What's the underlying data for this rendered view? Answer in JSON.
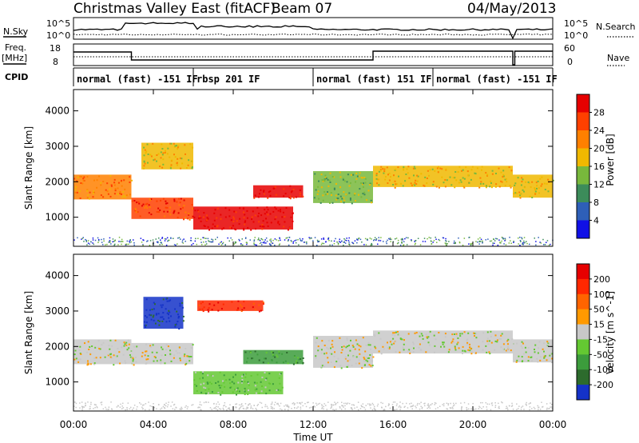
{
  "header": {
    "title": "Christmas Valley East (fitACF)",
    "beam": "Beam 07",
    "date": "04/May/2013"
  },
  "strip_labels": {
    "nsky": "N.Sky",
    "nsky_ticks": [
      "10^5",
      "10^0"
    ],
    "nsearch": "N.Search",
    "nsearch_ticks": [
      "10^5",
      "10^0"
    ],
    "freq": "Freq.",
    "freq_unit": "[MHz]",
    "freq_ticks": [
      "18",
      "8"
    ],
    "nave": "Nave",
    "nave_ticks": [
      "60",
      "0"
    ],
    "cpid": "CPID"
  },
  "cpid_segments": [
    {
      "label": "normal (fast) -151 IF",
      "start_hour": 0
    },
    {
      "label": "rbsp 201 IF",
      "start_hour": 6
    },
    {
      "label": "normal (fast) 151 IF",
      "start_hour": 12
    },
    {
      "label": "normal (fast) -151 IF",
      "start_hour": 18
    }
  ],
  "xaxis": {
    "label": "Time UT",
    "ticks": [
      "00:00",
      "04:00",
      "08:00",
      "12:00",
      "16:00",
      "20:00",
      "00:00"
    ]
  },
  "chart_data": [
    {
      "type": "heatmap",
      "ylabel": "Slant Range [km]",
      "xlabel": "Time UT",
      "xlim": [
        0,
        24
      ],
      "ylim": [
        180,
        4600
      ],
      "yticks": [
        1000,
        2000,
        3000,
        4000
      ],
      "colorbar": {
        "label": "Power [dB]",
        "ticks": [
          "4",
          "8",
          "12",
          "16",
          "20",
          "24",
          "28"
        ],
        "colors": [
          "#1010e6",
          "#2e5fb8",
          "#3c8c5a",
          "#78b83c",
          "#f0b800",
          "#ff8000",
          "#ff4000",
          "#e60000"
        ]
      },
      "bands": [
        {
          "t0": 0.0,
          "t1": 2.9,
          "r0": 1500,
          "r1": 2200,
          "level": 5
        },
        {
          "t0": 2.9,
          "t1": 6.0,
          "r0": 950,
          "r1": 1550,
          "level": 6
        },
        {
          "t0": 3.4,
          "t1": 6.0,
          "r0": 2350,
          "r1": 3100,
          "level": 4
        },
        {
          "t0": 6.0,
          "t1": 11.0,
          "r0": 650,
          "r1": 1300,
          "level": 7
        },
        {
          "t0": 9.0,
          "t1": 11.5,
          "r0": 1550,
          "r1": 1900,
          "level": 7
        },
        {
          "t0": 12.0,
          "t1": 15.0,
          "r0": 1400,
          "r1": 2300,
          "level": 3
        },
        {
          "t0": 15.0,
          "t1": 22.0,
          "r0": 1850,
          "r1": 2450,
          "level": 4
        },
        {
          "t0": 22.0,
          "t1": 24.0,
          "r0": 1550,
          "r1": 2200,
          "level": 4
        }
      ]
    },
    {
      "type": "heatmap",
      "ylabel": "Slant Range [km]",
      "xlabel": "Time UT",
      "xlim": [
        0,
        24
      ],
      "ylim": [
        180,
        4600
      ],
      "yticks": [
        1000,
        2000,
        3000,
        4000
      ],
      "colorbar": {
        "label": "Velocity [m s^-1]",
        "ticks": [
          "200",
          "100",
          "50",
          "15",
          "-15",
          "-50",
          "-100",
          "-200"
        ],
        "colors": [
          "#1432c8",
          "#2d6b2d",
          "#3c9c3c",
          "#64c832",
          "#c8c8c8",
          "#ff9900",
          "#ff6400",
          "#ff2800",
          "#e60000"
        ]
      },
      "bands": [
        {
          "t0": 0.0,
          "t1": 2.9,
          "r0": 1500,
          "r1": 2200,
          "level": 4
        },
        {
          "t0": 2.9,
          "t1": 6.0,
          "r0": 1500,
          "r1": 2100,
          "level": 4
        },
        {
          "t0": 3.5,
          "t1": 5.5,
          "r0": 2500,
          "r1": 3400,
          "level": 0
        },
        {
          "t0": 6.2,
          "t1": 9.5,
          "r0": 3000,
          "r1": 3300,
          "level": 7
        },
        {
          "t0": 6.0,
          "t1": 10.5,
          "r0": 650,
          "r1": 1300,
          "level": 3
        },
        {
          "t0": 8.5,
          "t1": 11.5,
          "r0": 1500,
          "r1": 1900,
          "level": 2
        },
        {
          "t0": 12.0,
          "t1": 15.0,
          "r0": 1400,
          "r1": 2300,
          "level": 4
        },
        {
          "t0": 15.0,
          "t1": 22.0,
          "r0": 1800,
          "r1": 2450,
          "level": 4
        },
        {
          "t0": 22.0,
          "t1": 24.0,
          "r0": 1550,
          "r1": 2200,
          "level": 4
        }
      ]
    }
  ]
}
